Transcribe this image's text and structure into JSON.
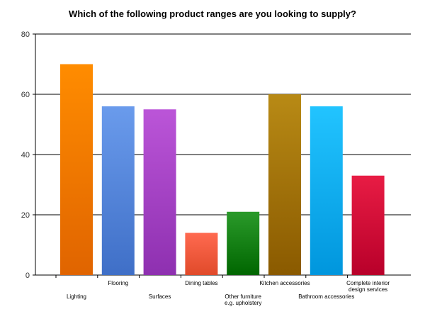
{
  "chart_data": {
    "type": "bar",
    "title": "Which of the following product ranges are you looking to supply?",
    "xlabel": "",
    "ylabel": "",
    "ylim": [
      0,
      80
    ],
    "yticks": [
      0,
      20,
      40,
      60,
      80
    ],
    "grid": true,
    "legend": "none",
    "categories": [
      "Lighting",
      "Flooring",
      "Surfaces",
      "Dining tables",
      "Other furniture e.g. upholstery",
      "Kitchen accessories",
      "Bathroom accessories",
      "Complete interior design services"
    ],
    "category_label_lines": [
      [
        "Lighting"
      ],
      [
        "Flooring"
      ],
      [
        "Surfaces"
      ],
      [
        "Dining tables"
      ],
      [
        "Other furniture",
        "e.g. upholstery"
      ],
      [
        "Kitchen accessories"
      ],
      [
        "Bathroom accessories"
      ],
      [
        "Complete interior",
        "design services"
      ]
    ],
    "values": [
      70,
      56,
      55,
      14,
      21,
      60,
      56,
      33
    ],
    "bar_colors": [
      [
        "#ff8c00",
        "#e06400"
      ],
      [
        "#6a9bec",
        "#3f6fc7"
      ],
      [
        "#bb55d8",
        "#8e30b0"
      ],
      [
        "#ff6a50",
        "#e04a2a"
      ],
      [
        "#2a9a2a",
        "#006600"
      ],
      [
        "#b88a15",
        "#8a5a00"
      ],
      [
        "#22c4ff",
        "#0096dd"
      ],
      [
        "#e81c44",
        "#b8002a"
      ]
    ]
  }
}
